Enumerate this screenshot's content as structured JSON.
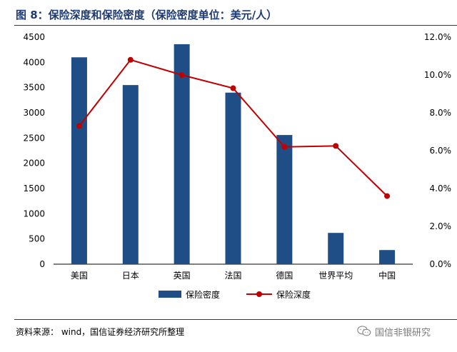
{
  "header": {
    "title": "图 8：保险深度和保险密度（保险密度单位：美元/人）"
  },
  "footer": {
    "source": "资料来源： wind，国信证券经济研究所整理",
    "watermark": "国信非银研究",
    "watermark_icon": "wechat-icon"
  },
  "colors": {
    "bar": "#1f4e87",
    "line": "#c00000",
    "title": "#1f3a6e"
  },
  "chart_data": {
    "type": "bar",
    "categories": [
      "美国",
      "日本",
      "英国",
      "法国",
      "德国",
      "世界平均",
      "中国"
    ],
    "series": [
      {
        "name": "保险密度",
        "type": "bar",
        "axis": "left",
        "values": [
          4100,
          3550,
          4360,
          3400,
          2560,
          620,
          280
        ]
      },
      {
        "name": "保险深度",
        "type": "line",
        "axis": "right",
        "values": [
          7.3,
          10.8,
          10.0,
          9.3,
          6.2,
          6.25,
          3.6
        ]
      }
    ],
    "y_left": {
      "min": 0,
      "max": 4500,
      "ticks": [
        "0",
        "500",
        "1000",
        "1500",
        "2000",
        "2500",
        "3000",
        "3500",
        "4000",
        "4500"
      ]
    },
    "y_right": {
      "min": 0,
      "max": 12,
      "ticks": [
        "0.0%",
        "2.0%",
        "4.0%",
        "6.0%",
        "8.0%",
        "10.0%",
        "12.0%"
      ]
    },
    "legend": [
      "保险密度",
      "保险深度"
    ],
    "legend_position": "bottom",
    "grid": false
  }
}
